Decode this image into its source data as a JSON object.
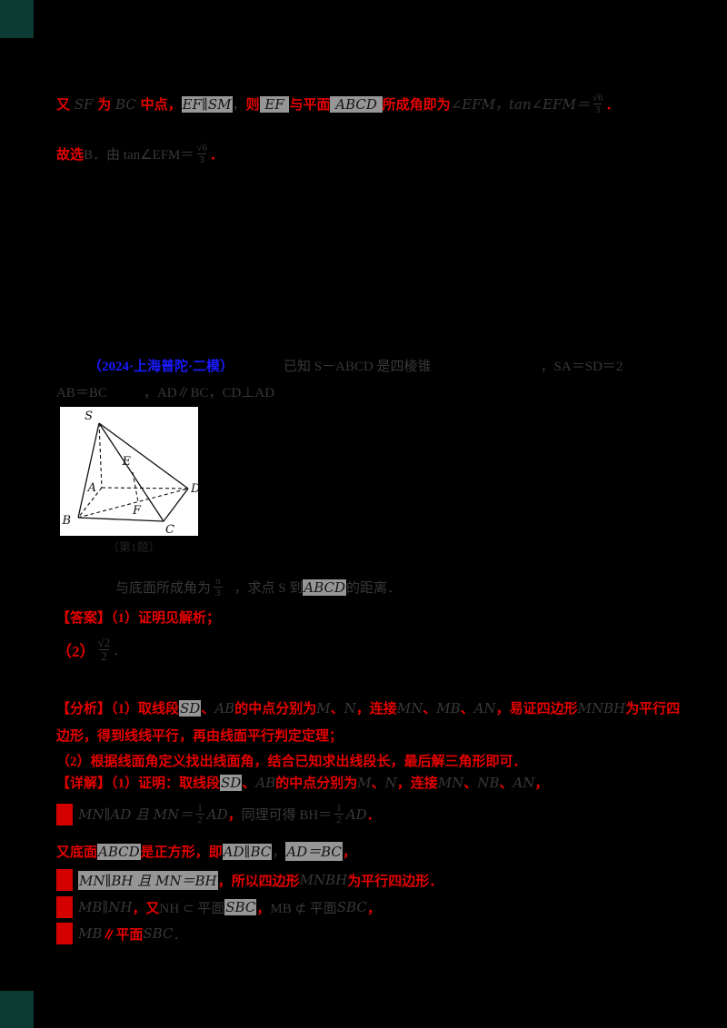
{
  "palette": {
    "background": "#000000",
    "answer_red": "#e60000",
    "source_blue": "#1a1aff",
    "faint_text": "#383838",
    "equation_highlight": "#969696",
    "corner_mark_teal": "#0e3a34"
  },
  "lines": {
    "l1": [
      {
        "t": "又",
        "c": "r"
      },
      {
        "t": " SF ",
        "c": "d i"
      },
      {
        "t": "为",
        "c": "r"
      },
      {
        "t": " BC ",
        "c": "d i"
      },
      {
        "t": "中点，",
        "c": "r"
      },
      {
        "t": "EF∥SM",
        "c": "dh i"
      },
      {
        "t": "，",
        "c": "d"
      },
      {
        "t": "则",
        "c": "r"
      },
      {
        "t": " EF ",
        "c": "dh i"
      },
      {
        "t": "与平面",
        "c": "r"
      },
      {
        "t": " ABCD ",
        "c": "dh i"
      },
      {
        "t": "所成角即为",
        "c": "r"
      },
      {
        "t": "∠EFM，tan∠EFM＝",
        "c": "d i"
      },
      {
        "t": "√6/3",
        "c": "frac d"
      },
      {
        "t": "．",
        "c": "r"
      }
    ],
    "l2": [
      {
        "t": "故选",
        "c": "r"
      },
      {
        "t": "B．由 tan∠EFM＝",
        "c": "d"
      },
      {
        "t": "√6/3",
        "c": "frac d"
      },
      {
        "t": "．",
        "c": "r"
      }
    ],
    "l3": [
      {
        "t": "（2024·上海普陀·二模）",
        "c": "b g35"
      },
      {
        "t": "已知 S－ABCD 是四棱锥",
        "c": "d g55"
      },
      {
        "t": "，SA＝SD＝2",
        "c": "d g120"
      }
    ],
    "l4": [
      {
        "t": "AB＝BC",
        "c": "d"
      },
      {
        "t": "，AD∥BC，CD⊥AD",
        "c": "d g40"
      }
    ],
    "l5": [
      {
        "t": "与底面所成角为",
        "c": "d g65"
      },
      {
        "t": "π/3",
        "c": "frac d g10"
      },
      {
        "t": "，求点 S 到",
        "c": "d g10"
      },
      {
        "t": "ABCD",
        "c": "dh i"
      },
      {
        "t": "的距离．",
        "c": "d"
      }
    ],
    "l6": [
      {
        "t": "【答案】（1）证明见解析；",
        "c": "r"
      }
    ],
    "l7": [
      {
        "t": "（2）",
        "c": "r big"
      },
      {
        "t": "√2/2",
        "c": "frac d fbig"
      },
      {
        "t": "．",
        "c": "d"
      }
    ],
    "l8": [
      {
        "t": "【分析】（1）取线段",
        "c": "r"
      },
      {
        "t": "SD",
        "c": "dh i"
      },
      {
        "t": "、",
        "c": "r"
      },
      {
        "t": "AB",
        "c": "d i"
      },
      {
        "t": "的中点分别为",
        "c": "r"
      },
      {
        "t": "M",
        "c": "d i"
      },
      {
        "t": "、",
        "c": "r"
      },
      {
        "t": "N",
        "c": "d i"
      },
      {
        "t": "，连接",
        "c": "r"
      },
      {
        "t": "MN",
        "c": "d i"
      },
      {
        "t": "、",
        "c": "r"
      },
      {
        "t": "MB",
        "c": "d i"
      },
      {
        "t": "、",
        "c": "r"
      },
      {
        "t": "AN",
        "c": "d i"
      },
      {
        "t": "，易证四边形",
        "c": "r"
      },
      {
        "t": "MNBH",
        "c": "d i"
      },
      {
        "t": "为平行四",
        "c": "r"
      }
    ],
    "l9": [
      {
        "t": "边形，得到线线平行，再由线面平行判定定理；",
        "c": "r"
      }
    ],
    "l10": [
      {
        "t": "（2）根据线面角定义找出线面角，结合已知求出线段长，最后解三角形即可．",
        "c": "r"
      }
    ],
    "l11": [
      {
        "t": "【详解】（1）证明：取线段",
        "c": "r"
      },
      {
        "t": "SD",
        "c": "dh i"
      },
      {
        "t": "、",
        "c": "r"
      },
      {
        "t": "AB",
        "c": "d i"
      },
      {
        "t": "的中点分别为",
        "c": "r"
      },
      {
        "t": "M",
        "c": "d i"
      },
      {
        "t": "、",
        "c": "r"
      },
      {
        "t": "N",
        "c": "d i"
      },
      {
        "t": "，连接",
        "c": "r"
      },
      {
        "t": "MN",
        "c": "d i"
      },
      {
        "t": "、",
        "c": "r"
      },
      {
        "t": "NB",
        "c": "d i"
      },
      {
        "t": "、",
        "c": "r"
      },
      {
        "t": "AN",
        "c": "d i"
      },
      {
        "t": "，",
        "c": "r"
      }
    ],
    "l12": [
      {
        "t": "则",
        "c": "rb"
      },
      {
        "t": "MN∥AD 且 MN＝",
        "c": "d i"
      },
      {
        "t": "1/2",
        "c": "frac d"
      },
      {
        "t": "AD",
        "c": "d i"
      },
      {
        "t": "，",
        "c": "r"
      },
      {
        "t": "同理可得 BH＝",
        "c": "d"
      },
      {
        "t": "1/2",
        "c": "frac d"
      },
      {
        "t": "AD",
        "c": "d i"
      },
      {
        "t": "．",
        "c": "r"
      }
    ],
    "l13": [
      {
        "t": "又底面",
        "c": "r"
      },
      {
        "t": "ABCD",
        "c": "dh i"
      },
      {
        "t": "是正方形，即",
        "c": "r"
      },
      {
        "t": "AD∥BC",
        "c": "dh i"
      },
      {
        "t": "，",
        "c": "d"
      },
      {
        "t": "AD＝BC",
        "c": "dh i"
      },
      {
        "t": "，",
        "c": "r"
      }
    ],
    "l14": [
      {
        "t": "则",
        "c": "rb"
      },
      {
        "t": "MN∥BH 且 MN＝BH",
        "c": "dh i"
      },
      {
        "t": "，所以四边形",
        "c": "r"
      },
      {
        "t": "MNBH",
        "c": "d i"
      },
      {
        "t": "为平行四边形．",
        "c": "r"
      }
    ],
    "l15": [
      {
        "t": "则",
        "c": "rb"
      },
      {
        "t": "MB∥NH",
        "c": "d i"
      },
      {
        "t": "，又",
        "c": "r"
      },
      {
        "t": "NH ⊂ 平面",
        "c": "d"
      },
      {
        "t": "SBC",
        "c": "dh i"
      },
      {
        "t": "，",
        "c": "r"
      },
      {
        "t": "MB ⊄ 平面",
        "c": "d"
      },
      {
        "t": "SBC",
        "c": "d i"
      },
      {
        "t": "，",
        "c": "r"
      }
    ],
    "l16": [
      {
        "t": "则",
        "c": "rb"
      },
      {
        "t": "MB",
        "c": "d i"
      },
      {
        "t": "∥平面",
        "c": "r"
      },
      {
        "t": "SBC",
        "c": "d i"
      },
      {
        "t": "．",
        "c": "d"
      }
    ]
  },
  "diagram": {
    "labels": {
      "s": "S",
      "a": "A",
      "b": "B",
      "c": "C",
      "d": "D",
      "e": "E",
      "f": "F"
    },
    "caption": "（第1题）"
  }
}
